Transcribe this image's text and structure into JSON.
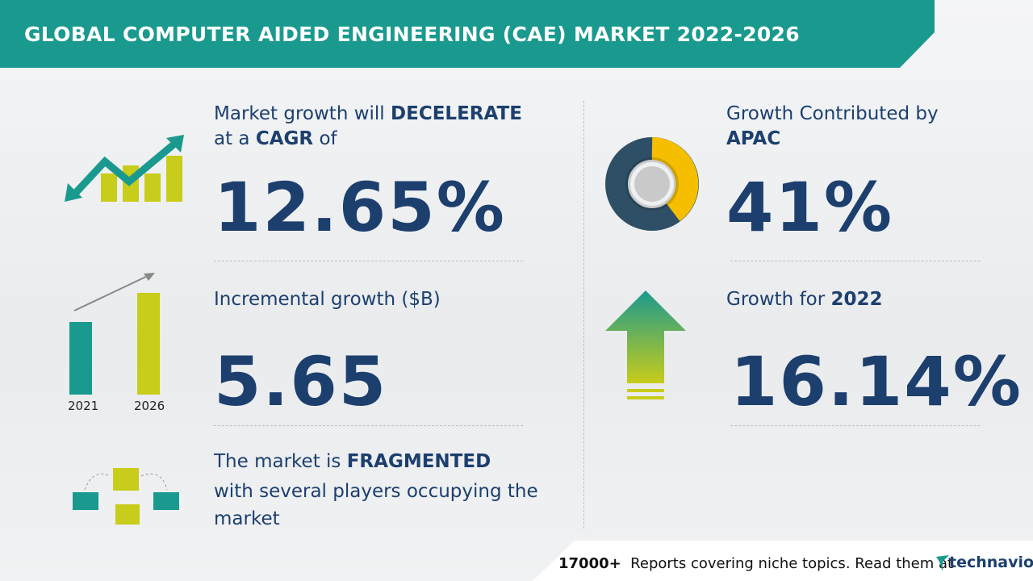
{
  "header": {
    "title": "GLOBAL COMPUTER AIDED ENGINEERING (CAE) MARKET 2022-2026"
  },
  "cagr": {
    "line1": "Market growth will",
    "emphasis1": "DECELERATE",
    "line2a": "at a",
    "emphasis2": "CAGR",
    "line2b": "of",
    "value": "12.65%"
  },
  "incremental": {
    "label": "Incremental growth ($B)",
    "value": "5.65",
    "bar_labels": [
      "2021",
      "2026"
    ]
  },
  "fragmented": {
    "line1": "The market is",
    "emphasis": "FRAGMENTED",
    "line2": "with several players occupying the market"
  },
  "region": {
    "label": "Growth Contributed by",
    "region": "APAC",
    "value": "41%"
  },
  "growth_year": {
    "label": "Growth for",
    "year": "2022",
    "value": "16.14%"
  },
  "footer": {
    "count": "17000+",
    "text": "Reports covering niche topics. Read them at",
    "brand": "technavio"
  }
}
